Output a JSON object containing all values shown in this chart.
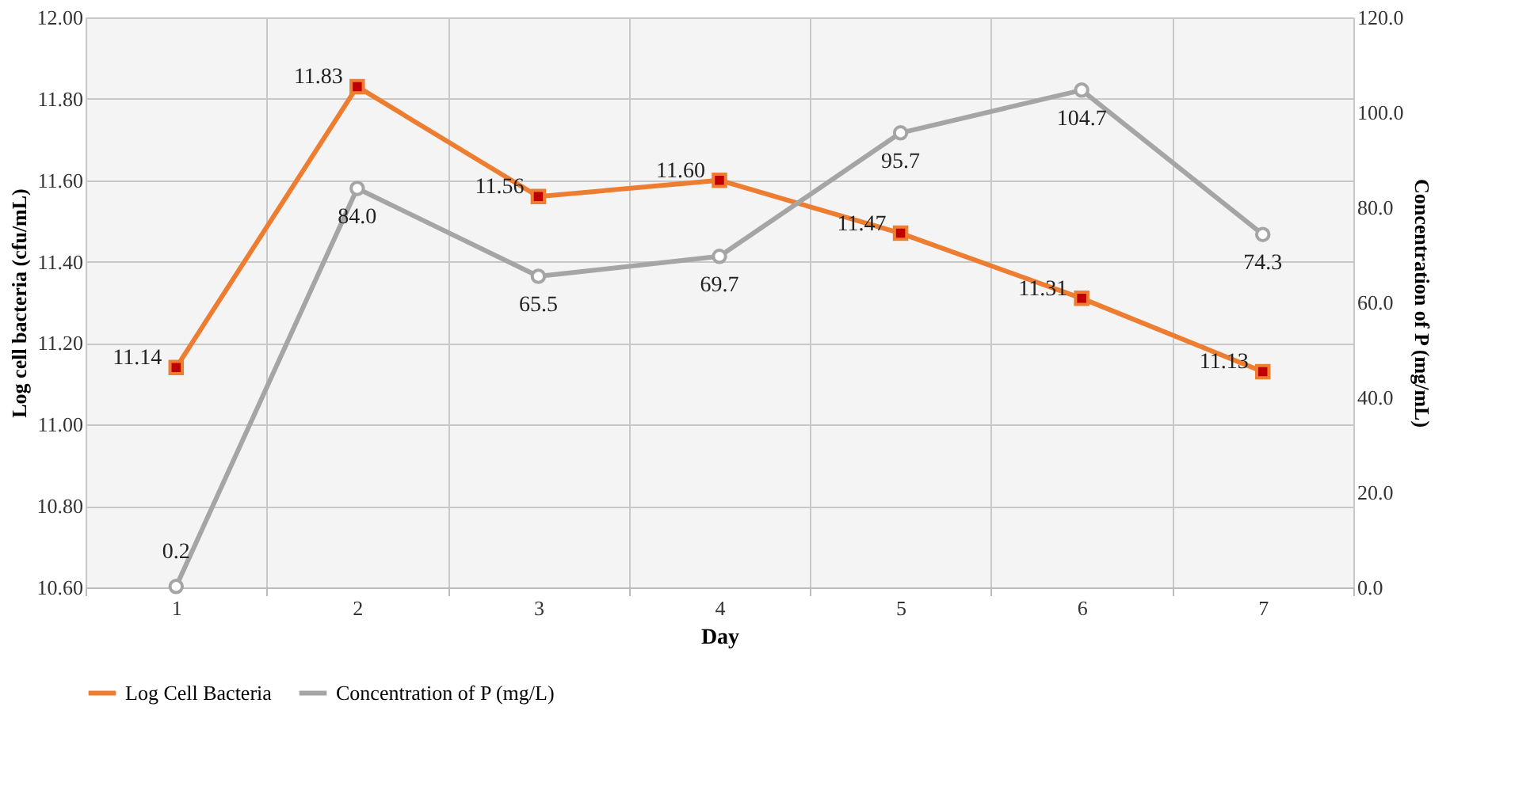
{
  "chart_data": {
    "type": "line",
    "xlabel": "Day",
    "ylabel": "Log cell bacteria (cfu/mL)",
    "y2label": "Concentration of P (mg/mL)",
    "categories": [
      "1",
      "2",
      "3",
      "4",
      "5",
      "6",
      "7"
    ],
    "series": [
      {
        "name": "Log Cell Bacteria",
        "color": "#ed7d31",
        "marker": "square",
        "values": [
          11.14,
          11.83,
          11.56,
          11.6,
          11.47,
          11.31,
          11.13
        ],
        "value_labels": [
          "11.14",
          "11.83",
          "11.56",
          "11.60",
          "11.47",
          "11.31",
          "11.13"
        ]
      },
      {
        "name": "Concentration of P (mg/L)",
        "color": "#a5a5a5",
        "marker": "circle",
        "axis": "y2",
        "values": [
          0.2,
          84.0,
          65.5,
          69.7,
          95.7,
          104.7,
          74.3
        ],
        "value_labels": [
          "0.2",
          "84.0",
          "65.5",
          "69.7",
          "95.7",
          "104.7",
          "74.3"
        ]
      }
    ],
    "ylim": [
      10.6,
      12.0
    ],
    "yticks": [
      {
        "value": 10.6,
        "label": "10.60"
      },
      {
        "value": 10.8,
        "label": "10.80"
      },
      {
        "value": 11.0,
        "label": "11.00"
      },
      {
        "value": 11.2,
        "label": "11.20"
      },
      {
        "value": 11.4,
        "label": "11.40"
      },
      {
        "value": 11.6,
        "label": "11.60"
      },
      {
        "value": 11.8,
        "label": "11.80"
      },
      {
        "value": 12.0,
        "label": "12.00"
      }
    ],
    "y2lim": [
      0,
      120
    ],
    "y2ticks": [
      {
        "value": 0,
        "label": "0.0"
      },
      {
        "value": 20,
        "label": "20.0"
      },
      {
        "value": 40,
        "label": "40.0"
      },
      {
        "value": 60,
        "label": "60.0"
      },
      {
        "value": 80,
        "label": "80.0"
      },
      {
        "value": 100,
        "label": "100.0"
      },
      {
        "value": 120,
        "label": "120.0"
      }
    ],
    "grid": true,
    "legend": "bottom",
    "line_style": "solid"
  }
}
